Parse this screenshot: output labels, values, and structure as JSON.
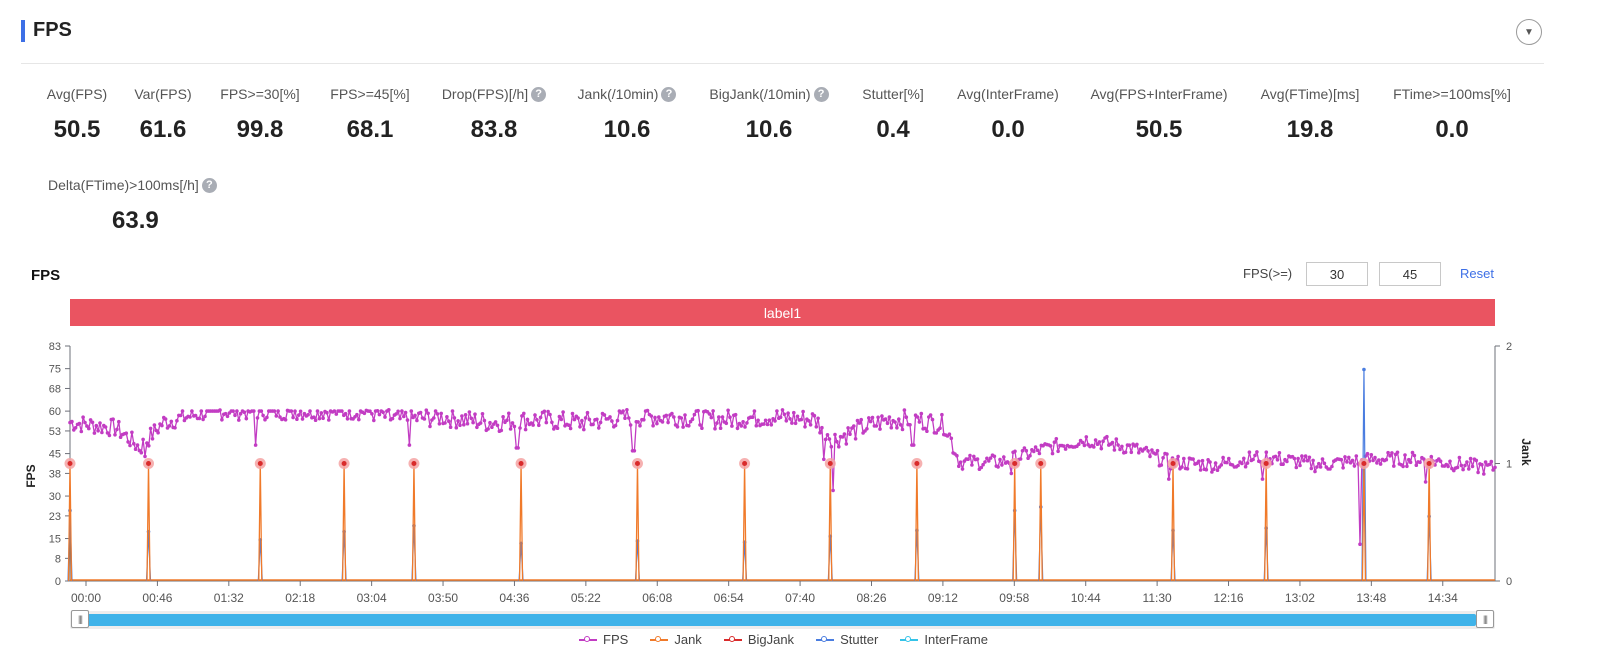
{
  "panel": {
    "title": "FPS",
    "collapse_icon": "chevron-down-icon"
  },
  "metrics": [
    {
      "label": "Avg(FPS)",
      "value": "50.5",
      "help": false
    },
    {
      "label": "Var(FPS)",
      "value": "61.6",
      "help": false
    },
    {
      "label": "FPS>=30[%]",
      "value": "99.8",
      "help": false
    },
    {
      "label": "FPS>=45[%]",
      "value": "68.1",
      "help": false
    },
    {
      "label": "Drop(FPS)[/h]",
      "value": "83.8",
      "help": true
    },
    {
      "label": "Jank(/10min)",
      "value": "10.6",
      "help": true
    },
    {
      "label": "BigJank(/10min)",
      "value": "10.6",
      "help": true
    },
    {
      "label": "Stutter[%]",
      "value": "0.4",
      "help": false
    },
    {
      "label": "Avg(InterFrame)",
      "value": "0.0",
      "help": false
    },
    {
      "label": "Avg(FPS+InterFrame)",
      "value": "50.5",
      "help": false
    },
    {
      "label": "Avg(FTime)[ms]",
      "value": "19.8",
      "help": false
    },
    {
      "label": "FTime>=100ms[%]",
      "value": "0.0",
      "help": false
    },
    {
      "label": "Delta(FTime)>100ms[/h]",
      "value": "63.9",
      "help": true
    }
  ],
  "help_glyph": "?",
  "chart_header": {
    "title": "FPS",
    "threshold_label": "FPS(>=)",
    "threshold_low": "30",
    "threshold_high": "45",
    "reset_label": "Reset"
  },
  "label_band": "label1",
  "colors": {
    "fps": "#c23cc3",
    "jank": "#f07a2a",
    "bigjank": "#d92b2b",
    "stutter": "#4a7de0",
    "interframe": "#34c3e8",
    "marker": "#f4a3a3"
  },
  "zoom_handle_glyph": "|||",
  "chart_data": {
    "type": "line",
    "y_left": {
      "label": "FPS",
      "ticks": [
        0,
        8,
        15,
        23,
        30,
        38,
        45,
        53,
        60,
        68,
        75,
        83
      ],
      "range": [
        0,
        83
      ]
    },
    "y_right": {
      "label": "Jank",
      "ticks": [
        0,
        1,
        2
      ],
      "range": [
        0,
        2
      ]
    },
    "x_ticks": [
      "00:00",
      "00:46",
      "01:32",
      "02:18",
      "03:04",
      "03:50",
      "04:36",
      "05:22",
      "06:08",
      "06:54",
      "07:40",
      "08:26",
      "09:12",
      "09:58",
      "10:44",
      "11:30",
      "12:16",
      "13:02",
      "13:48",
      "14:34"
    ],
    "x_range_min": [
      0,
      15.3
    ],
    "series": [
      {
        "name": "FPS",
        "axis": "left",
        "keypoints": [
          [
            0,
            56
          ],
          [
            0.5,
            54
          ],
          [
            0.75,
            47
          ],
          [
            1.0,
            56
          ],
          [
            1.5,
            60
          ],
          [
            2.5,
            60
          ],
          [
            3.2,
            60
          ],
          [
            3.5,
            57
          ],
          [
            4.0,
            58
          ],
          [
            4.5,
            56
          ],
          [
            5.0,
            57
          ],
          [
            5.5,
            56
          ],
          [
            6.0,
            58
          ],
          [
            6.5,
            58
          ],
          [
            7.0,
            57
          ],
          [
            7.5,
            58
          ],
          [
            8.0,
            57
          ],
          [
            8.2,
            50
          ],
          [
            8.5,
            54
          ],
          [
            8.8,
            57
          ],
          [
            9.1,
            57
          ],
          [
            9.4,
            55
          ],
          [
            9.55,
            42
          ],
          [
            10.0,
            42
          ],
          [
            10.5,
            47
          ],
          [
            10.9,
            50
          ],
          [
            11.4,
            47
          ],
          [
            11.8,
            42
          ],
          [
            12.3,
            41
          ],
          [
            12.8,
            44
          ],
          [
            13.4,
            41
          ],
          [
            14.0,
            43
          ],
          [
            14.5,
            43
          ],
          [
            15.2,
            40
          ]
        ]
      },
      {
        "name": "Jank",
        "axis": "right",
        "events_min": [
          0,
          0.8,
          2.0,
          2.9,
          3.65,
          4.8,
          6.05,
          7.2,
          8.12,
          9.05,
          10.1,
          10.38,
          11.8,
          12.8,
          13.85,
          14.55
        ]
      },
      {
        "name": "BigJank",
        "axis": "right",
        "values": "zero"
      },
      {
        "name": "Stutter",
        "axis": "right",
        "events_min": [
          0,
          0.8,
          2.0,
          2.9,
          3.65,
          4.8,
          6.05,
          7.2,
          8.12,
          9.05,
          10.1,
          10.38,
          11.8,
          12.8,
          13.85,
          14.55
        ]
      },
      {
        "name": "InterFrame",
        "axis": "left",
        "values": "zero"
      }
    ]
  },
  "legend": [
    "FPS",
    "Jank",
    "BigJank",
    "Stutter",
    "InterFrame"
  ]
}
